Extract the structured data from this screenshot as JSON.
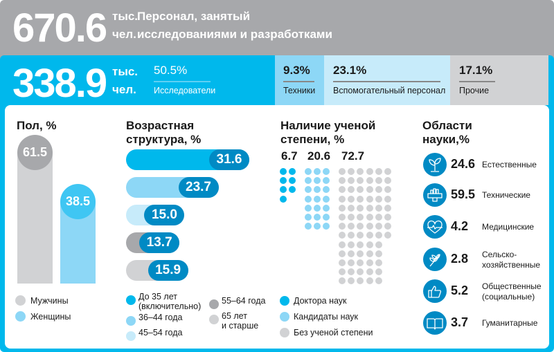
{
  "header": {
    "total": "670.6",
    "unit_line1": "тыс.",
    "unit_line2": "чел.",
    "title_line1": "Персонал, занятый",
    "title_line2": "исследованиями и разработками"
  },
  "researchers": {
    "value": "338.9",
    "unit_line1": "тыс.",
    "unit_line2": "чел.",
    "pct": "50.5%",
    "label": "Исследователи"
  },
  "categories": [
    {
      "pct": "9.3%",
      "label": "Техники",
      "color": "#8dd7f6"
    },
    {
      "pct": "23.1%",
      "label": "Вспомогательный персонал",
      "color": "#c7ebfa"
    },
    {
      "pct": "17.1%",
      "label": "Прочие",
      "color": "#d1d2d4"
    }
  ],
  "chart_data": [
    {
      "type": "bar",
      "title": "Пол, %",
      "categories": [
        "Мужчины",
        "Женщины"
      ],
      "values": [
        61.5,
        38.5
      ],
      "value_labels": [
        "61.5",
        "38.5"
      ],
      "colors": [
        "#d1d2d4",
        "#8dd7f6"
      ],
      "label_colors": [
        "#a7a8ab",
        "#3fc6f3"
      ],
      "legend": [
        {
          "label": "Мужчины",
          "color": "#d1d2d4"
        },
        {
          "label": "Женщины",
          "color": "#8dd7f6"
        }
      ]
    },
    {
      "type": "bar",
      "orientation": "horizontal",
      "title_line1": "Возрастная",
      "title_line2": "структура, %",
      "categories": [
        "До 35 лет (включительно)",
        "36–44 года",
        "45–54 года",
        "55–64 года",
        "65 лет и старше"
      ],
      "values": [
        31.6,
        23.7,
        15.0,
        13.7,
        15.9
      ],
      "value_labels": [
        "31.6",
        "23.7",
        "15.0",
        "13.7",
        "15.9"
      ],
      "colors": [
        "#00b8ec",
        "#8dd7f6",
        "#c7ebfa",
        "#a7a8ab",
        "#d1d2d4"
      ],
      "legend": [
        {
          "label1": "До 35 лет",
          "label2": "(включительно)",
          "color": "#00b8ec"
        },
        {
          "label1": "36–44 года",
          "label2": "",
          "color": "#8dd7f6"
        },
        {
          "label1": "45–54 года",
          "label2": "",
          "color": "#c7ebfa"
        },
        {
          "label1": "55–64 года",
          "label2": "",
          "color": "#a7a8ab"
        },
        {
          "label1": "65 лет",
          "label2": "и старше",
          "color": "#d1d2d4"
        }
      ]
    },
    {
      "type": "dot-matrix",
      "title_line1": "Наличие ученой",
      "title_line2": "степени, %",
      "categories": [
        "Доктора наук",
        "Кандидаты наук",
        "Без ученой степени"
      ],
      "values": [
        6.7,
        20.6,
        72.7
      ],
      "value_labels": [
        "6.7",
        "20.6",
        "72.7"
      ],
      "colors": [
        "#00b8ec",
        "#8dd7f6",
        "#d1d2d4"
      ]
    },
    {
      "type": "table",
      "title_line1": "Области",
      "title_line2": "науки,%",
      "rows": [
        {
          "value": "24.6",
          "label1": "Естественные",
          "label2": "",
          "icon": "sprout-icon"
        },
        {
          "value": "59.5",
          "label1": "Технические",
          "label2": "",
          "icon": "hand-ruler-icon"
        },
        {
          "value": "4.2",
          "label1": "Медицинские",
          "label2": "",
          "icon": "heart-pulse-icon"
        },
        {
          "value": "2.8",
          "label1": "Сельско-",
          "label2": "хозяйственные",
          "icon": "wheat-icon"
        },
        {
          "value": "5.2",
          "label1": "Общественные",
          "label2": "(социальные)",
          "icon": "thumbs-up-icon"
        },
        {
          "value": "3.7",
          "label1": "Гуманитарные",
          "label2": "",
          "icon": "book-icon"
        }
      ]
    }
  ]
}
